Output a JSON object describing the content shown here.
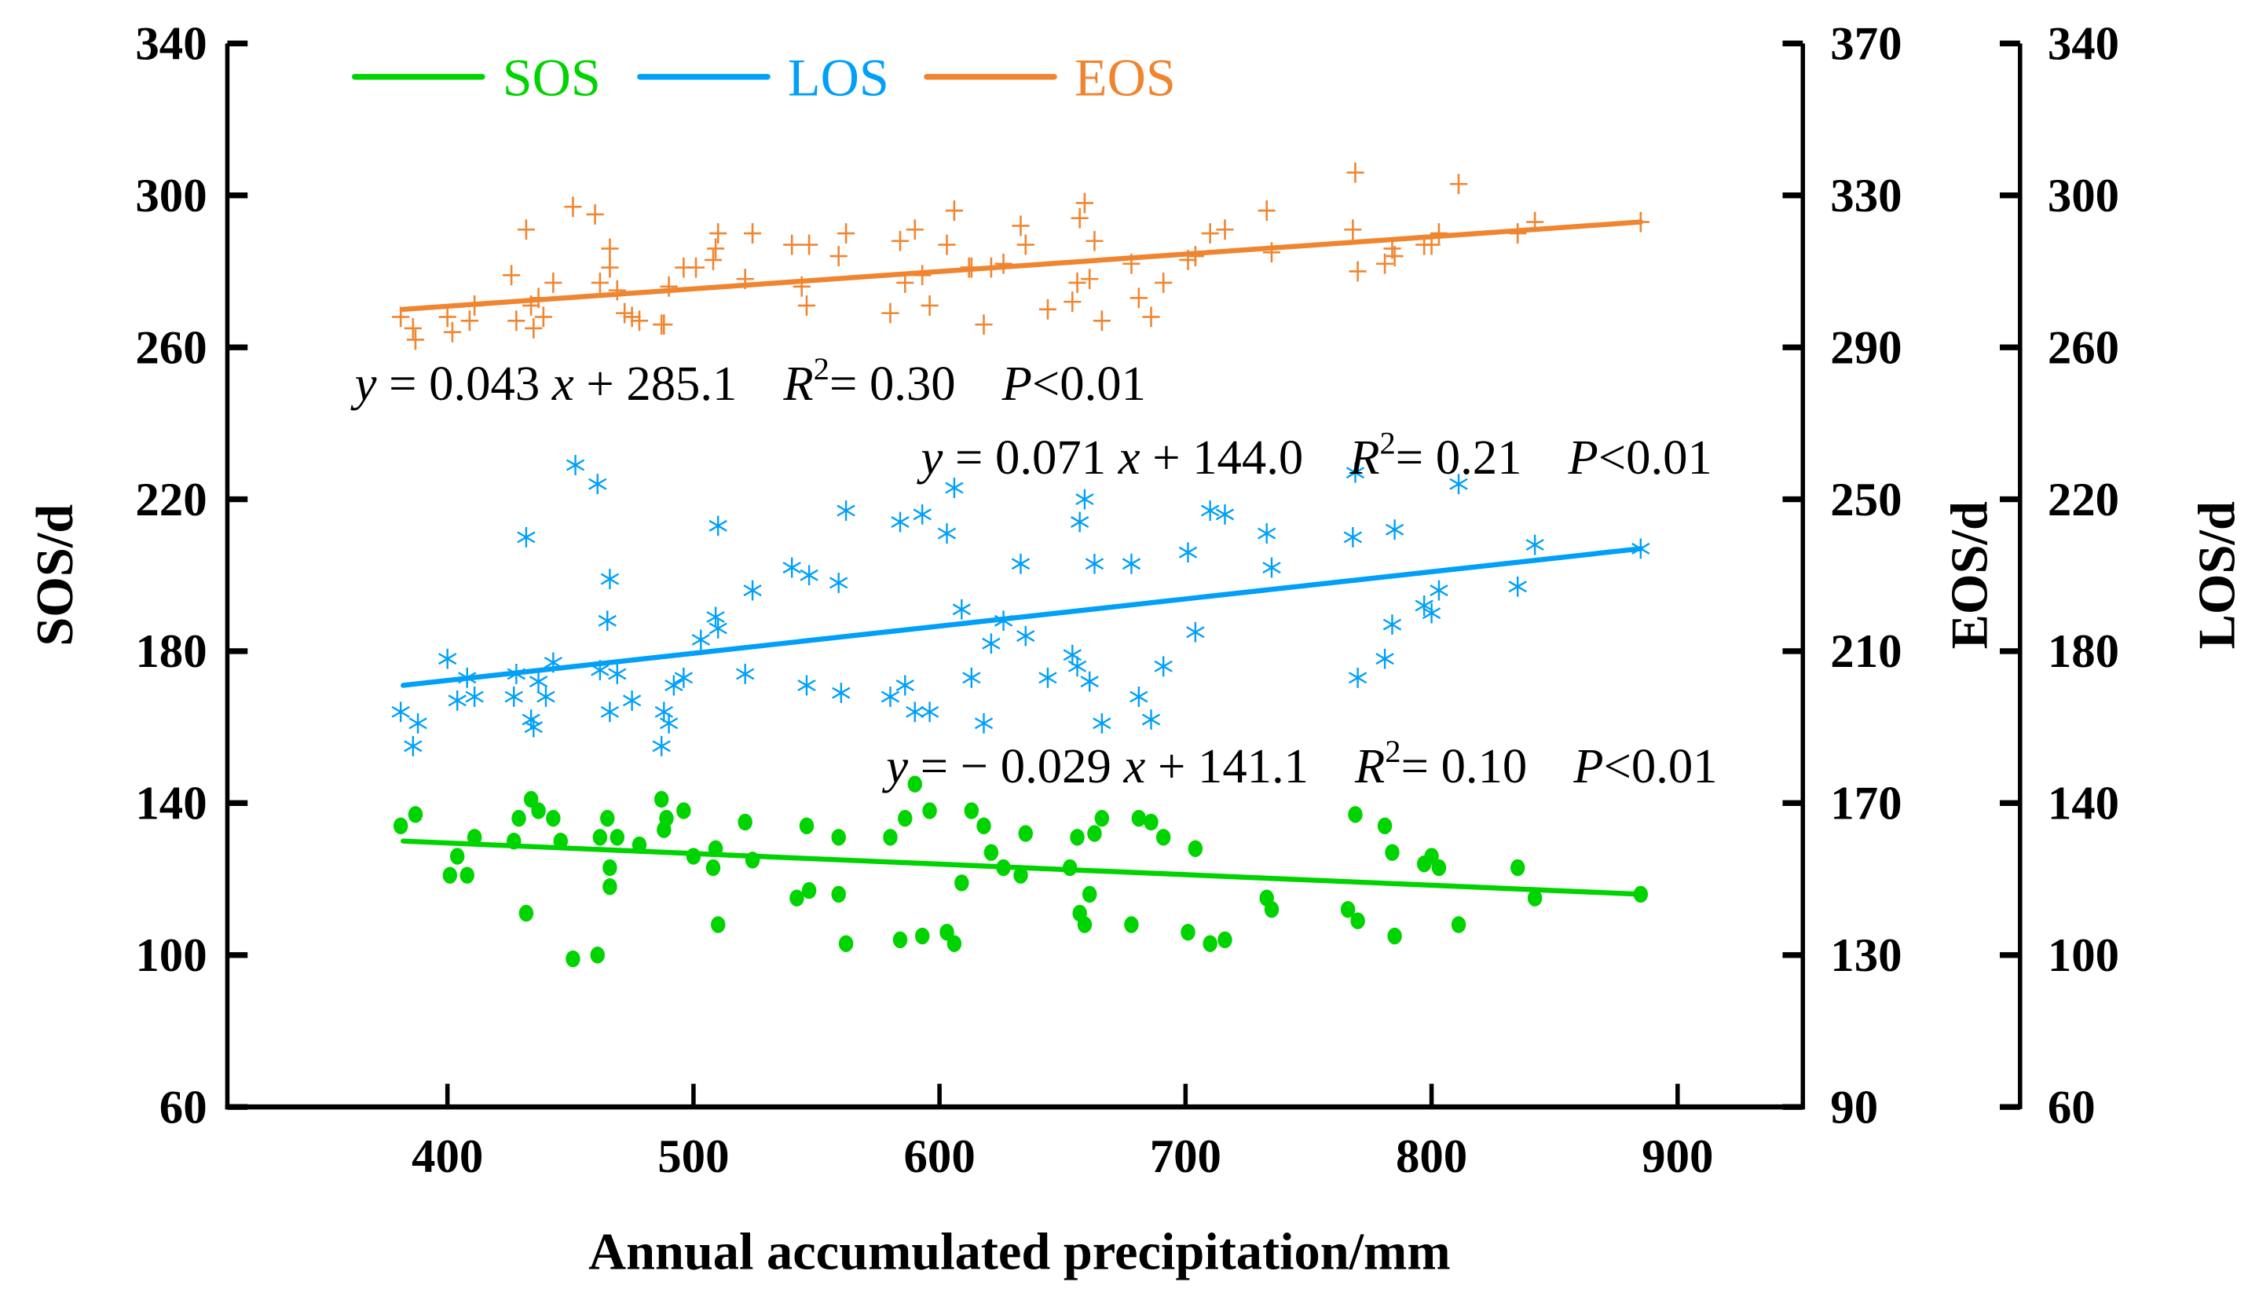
{
  "chart_data": {
    "type": "scatter",
    "xlabel": "Annual accumulated precipitation/mm",
    "ylabel_left": "SOS/d",
    "ylabel_right1": "EOS/d",
    "ylabel_right2": "LOS/d",
    "xlim": [
      310,
      950
    ],
    "xticks": [
      400,
      500,
      600,
      700,
      800,
      900
    ],
    "ylim_sos": [
      60,
      340
    ],
    "yticks_sos": [
      60,
      100,
      140,
      180,
      220,
      260,
      300,
      340
    ],
    "ylim_eos": [
      90,
      370
    ],
    "yticks_eos": [
      90,
      130,
      170,
      210,
      250,
      290,
      330,
      370
    ],
    "ylim_los": [
      60,
      340
    ],
    "yticks_los": [
      60,
      100,
      140,
      180,
      220,
      260,
      300,
      340
    ],
    "grid": false,
    "legend_position": "top-left",
    "series": [
      {
        "name": "SOS",
        "axis": "sos",
        "marker": "circle",
        "color": "#00d400",
        "trend": {
          "x": [
            382,
            885
          ],
          "y": [
            130,
            116
          ]
        },
        "equation": {
          "lhs": "y",
          "eq": " = − 0.029 ",
          "x": "x",
          "rest": " + 141.1",
          "r": "R",
          "sup": "2",
          "r2": "= 0.10",
          "p": "P",
          "pval": "<0.01"
        },
        "points": [
          [
            381,
            134
          ],
          [
            387,
            137
          ],
          [
            401,
            121
          ],
          [
            404,
            126
          ],
          [
            408,
            121
          ],
          [
            411,
            131
          ],
          [
            427,
            130
          ],
          [
            429,
            136
          ],
          [
            432,
            111
          ],
          [
            434,
            141
          ],
          [
            437,
            138
          ],
          [
            443,
            136
          ],
          [
            446,
            130
          ],
          [
            451,
            99
          ],
          [
            461,
            100
          ],
          [
            462,
            131
          ],
          [
            465,
            136
          ],
          [
            466,
            123
          ],
          [
            466,
            118
          ],
          [
            469,
            131
          ],
          [
            478,
            129
          ],
          [
            487,
            141
          ],
          [
            488,
            133
          ],
          [
            489,
            136
          ],
          [
            496,
            138
          ],
          [
            500,
            126
          ],
          [
            508,
            123
          ],
          [
            509,
            128
          ],
          [
            510,
            108
          ],
          [
            521,
            135
          ],
          [
            524,
            125
          ],
          [
            542,
            115
          ],
          [
            546,
            134
          ],
          [
            547,
            117
          ],
          [
            559,
            116
          ],
          [
            559,
            131
          ],
          [
            562,
            103
          ],
          [
            580,
            131
          ],
          [
            584,
            104
          ],
          [
            586,
            136
          ],
          [
            590,
            145
          ],
          [
            593,
            105
          ],
          [
            596,
            138
          ],
          [
            603,
            106
          ],
          [
            606,
            103
          ],
          [
            609,
            119
          ],
          [
            613,
            138
          ],
          [
            618,
            134
          ],
          [
            621,
            127
          ],
          [
            626,
            123
          ],
          [
            633,
            121
          ],
          [
            635,
            132
          ],
          [
            653,
            123
          ],
          [
            656,
            131
          ],
          [
            657,
            111
          ],
          [
            659,
            108
          ],
          [
            661,
            116
          ],
          [
            663,
            132
          ],
          [
            666,
            136
          ],
          [
            678,
            108
          ],
          [
            681,
            136
          ],
          [
            686,
            135
          ],
          [
            691,
            131
          ],
          [
            701,
            106
          ],
          [
            704,
            128
          ],
          [
            710,
            103
          ],
          [
            716,
            104
          ],
          [
            733,
            115
          ],
          [
            735,
            112
          ],
          [
            766,
            112
          ],
          [
            769,
            137
          ],
          [
            770,
            109
          ],
          [
            781,
            134
          ],
          [
            784,
            127
          ],
          [
            785,
            105
          ],
          [
            797,
            124
          ],
          [
            800,
            126
          ],
          [
            803,
            123
          ],
          [
            811,
            108
          ],
          [
            835,
            123
          ],
          [
            842,
            115
          ],
          [
            885,
            116
          ]
        ]
      },
      {
        "name": "LOS",
        "axis": "los",
        "marker": "asterisk",
        "color": "#00a0f8",
        "trend": {
          "x": [
            382,
            885
          ],
          "y": [
            171,
            207
          ]
        },
        "equation": {
          "lhs": "y",
          "eq": " = 0.071 ",
          "x": "x",
          "rest": " + 144.0",
          "r": "R",
          "sup": "2",
          "r2": "= 0.21",
          "p": "P",
          "pval": "<0.01"
        },
        "points": [
          [
            381,
            164
          ],
          [
            386,
            155
          ],
          [
            388,
            161
          ],
          [
            400,
            178
          ],
          [
            404,
            167
          ],
          [
            408,
            173
          ],
          [
            411,
            168
          ],
          [
            427,
            168
          ],
          [
            428,
            174
          ],
          [
            432,
            210
          ],
          [
            434,
            162
          ],
          [
            435,
            160
          ],
          [
            437,
            172
          ],
          [
            440,
            168
          ],
          [
            443,
            177
          ],
          [
            452,
            229
          ],
          [
            461,
            224
          ],
          [
            462,
            175
          ],
          [
            465,
            188
          ],
          [
            466,
            199
          ],
          [
            466,
            164
          ],
          [
            469,
            174
          ],
          [
            475,
            167
          ],
          [
            487,
            155
          ],
          [
            488,
            164
          ],
          [
            490,
            161
          ],
          [
            492,
            171
          ],
          [
            496,
            173
          ],
          [
            503,
            183
          ],
          [
            509,
            189
          ],
          [
            510,
            186
          ],
          [
            510,
            213
          ],
          [
            521,
            174
          ],
          [
            524,
            196
          ],
          [
            540,
            202
          ],
          [
            546,
            171
          ],
          [
            547,
            200
          ],
          [
            559,
            198
          ],
          [
            560,
            169
          ],
          [
            562,
            217
          ],
          [
            580,
            168
          ],
          [
            584,
            214
          ],
          [
            586,
            171
          ],
          [
            590,
            164
          ],
          [
            593,
            216
          ],
          [
            596,
            164
          ],
          [
            603,
            211
          ],
          [
            606,
            223
          ],
          [
            609,
            191
          ],
          [
            613,
            173
          ],
          [
            618,
            161
          ],
          [
            621,
            182
          ],
          [
            626,
            188
          ],
          [
            633,
            203
          ],
          [
            635,
            184
          ],
          [
            644,
            173
          ],
          [
            654,
            179
          ],
          [
            656,
            176
          ],
          [
            657,
            214
          ],
          [
            659,
            220
          ],
          [
            661,
            172
          ],
          [
            663,
            203
          ],
          [
            666,
            161
          ],
          [
            678,
            203
          ],
          [
            681,
            168
          ],
          [
            686,
            162
          ],
          [
            691,
            176
          ],
          [
            701,
            206
          ],
          [
            704,
            185
          ],
          [
            710,
            217
          ],
          [
            716,
            216
          ],
          [
            733,
            211
          ],
          [
            735,
            202
          ],
          [
            768,
            210
          ],
          [
            769,
            227
          ],
          [
            770,
            173
          ],
          [
            781,
            178
          ],
          [
            784,
            187
          ],
          [
            785,
            212
          ],
          [
            797,
            192
          ],
          [
            800,
            190
          ],
          [
            803,
            196
          ],
          [
            811,
            224
          ],
          [
            835,
            197
          ],
          [
            842,
            208
          ],
          [
            885,
            207
          ]
        ]
      },
      {
        "name": "EOS",
        "axis": "eos",
        "marker": "plus",
        "color": "#f08530",
        "trend": {
          "x": [
            382,
            885
          ],
          "y": [
            300,
            323
          ]
        },
        "equation": {
          "lhs": "y",
          "eq": " = 0.043 ",
          "x": "x",
          "rest": " + 285.1",
          "r": "R",
          "sup": "2",
          "r2": "= 0.30",
          "p": "P",
          "pval": "<0.01"
        },
        "points": [
          [
            381,
            298
          ],
          [
            386,
            295
          ],
          [
            387,
            292
          ],
          [
            400,
            298
          ],
          [
            402,
            294
          ],
          [
            409,
            297
          ],
          [
            411,
            301
          ],
          [
            426,
            309
          ],
          [
            428,
            297
          ],
          [
            432,
            321
          ],
          [
            434,
            301
          ],
          [
            435,
            295
          ],
          [
            437,
            303
          ],
          [
            439,
            298
          ],
          [
            443,
            307
          ],
          [
            451,
            327
          ],
          [
            460,
            325
          ],
          [
            462,
            307
          ],
          [
            466,
            316
          ],
          [
            466,
            311
          ],
          [
            469,
            305
          ],
          [
            472,
            299
          ],
          [
            475,
            298
          ],
          [
            478,
            297
          ],
          [
            487,
            296
          ],
          [
            488,
            296
          ],
          [
            490,
            306
          ],
          [
            496,
            311
          ],
          [
            501,
            311
          ],
          [
            508,
            313
          ],
          [
            509,
            316
          ],
          [
            510,
            320
          ],
          [
            521,
            308
          ],
          [
            524,
            320
          ],
          [
            540,
            317
          ],
          [
            544,
            306
          ],
          [
            546,
            301
          ],
          [
            547,
            317
          ],
          [
            559,
            314
          ],
          [
            562,
            320
          ],
          [
            580,
            299
          ],
          [
            584,
            318
          ],
          [
            586,
            307
          ],
          [
            590,
            321
          ],
          [
            593,
            309
          ],
          [
            596,
            301
          ],
          [
            603,
            317
          ],
          [
            606,
            326
          ],
          [
            612,
            311
          ],
          [
            613,
            311
          ],
          [
            618,
            296
          ],
          [
            621,
            311
          ],
          [
            626,
            312
          ],
          [
            633,
            322
          ],
          [
            635,
            317
          ],
          [
            644,
            300
          ],
          [
            654,
            302
          ],
          [
            656,
            307
          ],
          [
            657,
            324
          ],
          [
            659,
            328
          ],
          [
            661,
            308
          ],
          [
            663,
            318
          ],
          [
            666,
            297
          ],
          [
            678,
            312
          ],
          [
            681,
            303
          ],
          [
            686,
            298
          ],
          [
            691,
            307
          ],
          [
            701,
            313
          ],
          [
            704,
            314
          ],
          [
            710,
            320
          ],
          [
            716,
            321
          ],
          [
            733,
            326
          ],
          [
            735,
            315
          ],
          [
            768,
            321
          ],
          [
            769,
            336
          ],
          [
            770,
            310
          ],
          [
            781,
            312
          ],
          [
            784,
            316
          ],
          [
            785,
            314
          ],
          [
            797,
            317
          ],
          [
            800,
            317
          ],
          [
            803,
            320
          ],
          [
            811,
            333
          ],
          [
            835,
            320
          ],
          [
            842,
            323
          ],
          [
            885,
            323
          ]
        ]
      }
    ]
  }
}
